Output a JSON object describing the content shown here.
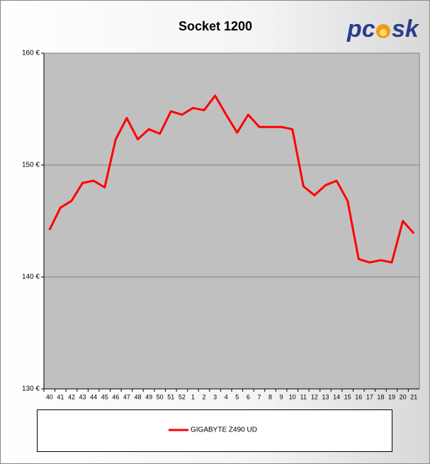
{
  "chart_data": {
    "type": "line",
    "title": "Socket 1200",
    "logo": [
      "pc",
      "sk"
    ],
    "categories": [
      "40",
      "41",
      "42",
      "43",
      "44",
      "45",
      "46",
      "47",
      "48",
      "49",
      "50",
      "51",
      "52",
      "1",
      "2",
      "3",
      "4",
      "5",
      "6",
      "7",
      "8",
      "9",
      "10",
      "11",
      "12",
      "13",
      "14",
      "15",
      "16",
      "17",
      "18",
      "19",
      "20",
      "21"
    ],
    "series": [
      {
        "name": "GIGABYTE Z490 UD",
        "color": "#ff0000",
        "values": [
          144.2,
          146.2,
          146.8,
          148.4,
          148.6,
          148.0,
          152.3,
          154.2,
          152.3,
          153.2,
          152.8,
          154.8,
          154.5,
          155.1,
          154.9,
          156.2,
          154.5,
          152.9,
          154.5,
          153.4,
          153.4,
          153.4,
          153.2,
          148.1,
          147.3,
          148.2,
          148.6,
          146.8,
          141.6,
          141.3,
          141.5,
          141.3,
          145.0,
          143.9
        ]
      }
    ],
    "ylim": [
      130,
      160
    ],
    "yticks": [
      {
        "value": 130,
        "label": "130 €"
      },
      {
        "value": 140,
        "label": "140 €"
      },
      {
        "value": 150,
        "label": "150 €"
      },
      {
        "value": 160,
        "label": "160 €"
      }
    ],
    "grid": true
  }
}
